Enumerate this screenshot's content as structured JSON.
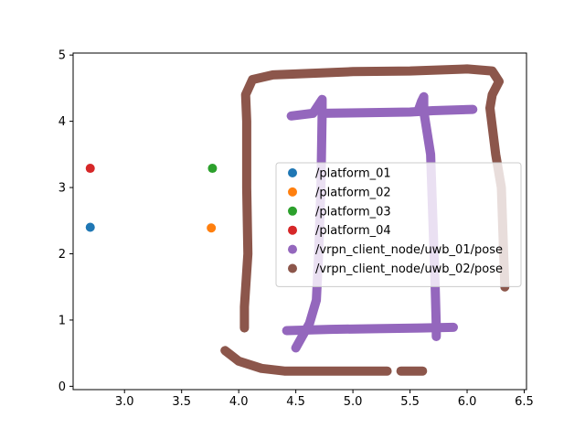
{
  "chart_data": {
    "type": "scatter",
    "title": "",
    "xlabel": "",
    "ylabel": "",
    "xlim": [
      2.55,
      6.52
    ],
    "ylim": [
      -0.05,
      5.03
    ],
    "xticks": [
      3.0,
      3.5,
      4.0,
      4.5,
      5.0,
      5.5,
      6.0,
      6.5
    ],
    "xtick_labels": [
      "3.0",
      "3.5",
      "4.0",
      "4.5",
      "5.0",
      "5.5",
      "6.0",
      "6.5"
    ],
    "yticks": [
      0,
      1,
      2,
      3,
      4,
      5
    ],
    "ytick_labels": [
      "0",
      "1",
      "2",
      "3",
      "4",
      "5"
    ],
    "grid": false,
    "legend_placement": "center-right",
    "series": [
      {
        "name": "/platform_01",
        "color": "#1f77b4",
        "points": [
          [
            2.7,
            2.4
          ]
        ]
      },
      {
        "name": "/platform_02",
        "color": "#ff7f0e",
        "points": [
          [
            3.76,
            2.39
          ]
        ]
      },
      {
        "name": "/platform_03",
        "color": "#2ca02c",
        "points": [
          [
            3.77,
            3.29
          ]
        ]
      },
      {
        "name": "/platform_04",
        "color": "#d62728",
        "points": [
          [
            2.7,
            3.29
          ]
        ]
      },
      {
        "name": "/vrpn_client_node/uwb_01/pose",
        "color": "#9467bd",
        "paths": [
          [
            [
              4.46,
              4.08
            ],
            [
              4.65,
              4.12
            ],
            [
              4.73,
              4.33
            ],
            [
              4.73,
              4.1
            ],
            [
              4.72,
              3.0
            ],
            [
              4.7,
              2.0
            ],
            [
              4.68,
              1.3
            ],
            [
              4.62,
              0.95
            ],
            [
              4.5,
              0.58
            ]
          ],
          [
            [
              4.73,
              4.12
            ],
            [
              5.1,
              4.13
            ],
            [
              5.5,
              4.14
            ],
            [
              5.7,
              4.16
            ],
            [
              6.05,
              4.18
            ]
          ],
          [
            [
              5.57,
              4.15
            ],
            [
              5.6,
              4.3
            ],
            [
              5.62,
              4.37
            ],
            [
              5.62,
              4.15
            ],
            [
              5.68,
              3.5
            ],
            [
              5.7,
              2.5
            ],
            [
              5.72,
              1.5
            ],
            [
              5.73,
              0.9
            ],
            [
              5.73,
              0.75
            ]
          ],
          [
            [
              4.42,
              0.84
            ],
            [
              4.8,
              0.86
            ],
            [
              5.2,
              0.87
            ],
            [
              5.6,
              0.88
            ],
            [
              5.88,
              0.89
            ]
          ]
        ]
      },
      {
        "name": "/vrpn_client_node/uwb_02/pose",
        "color": "#8c564b",
        "paths": [
          [
            [
              4.05,
              0.88
            ],
            [
              4.05,
              1.2
            ],
            [
              4.08,
              2.0
            ],
            [
              4.07,
              3.0
            ],
            [
              4.07,
              4.0
            ],
            [
              4.06,
              4.4
            ],
            [
              4.12,
              4.63
            ],
            [
              4.3,
              4.7
            ],
            [
              5.0,
              4.75
            ],
            [
              5.5,
              4.76
            ],
            [
              6.0,
              4.79
            ],
            [
              6.22,
              4.76
            ],
            [
              6.28,
              4.6
            ],
            [
              6.22,
              4.4
            ],
            [
              6.2,
              4.2
            ],
            [
              6.25,
              3.5
            ],
            [
              6.3,
              3.0
            ],
            [
              6.32,
              2.0
            ],
            [
              6.33,
              1.5
            ]
          ],
          [
            [
              3.88,
              0.54
            ],
            [
              4.0,
              0.38
            ],
            [
              4.2,
              0.27
            ],
            [
              4.4,
              0.23
            ],
            [
              4.7,
              0.23
            ],
            [
              5.0,
              0.23
            ],
            [
              5.2,
              0.23
            ],
            [
              5.3,
              0.23
            ]
          ],
          [
            [
              5.42,
              0.23
            ],
            [
              5.55,
              0.23
            ],
            [
              5.61,
              0.23
            ]
          ]
        ]
      }
    ]
  }
}
